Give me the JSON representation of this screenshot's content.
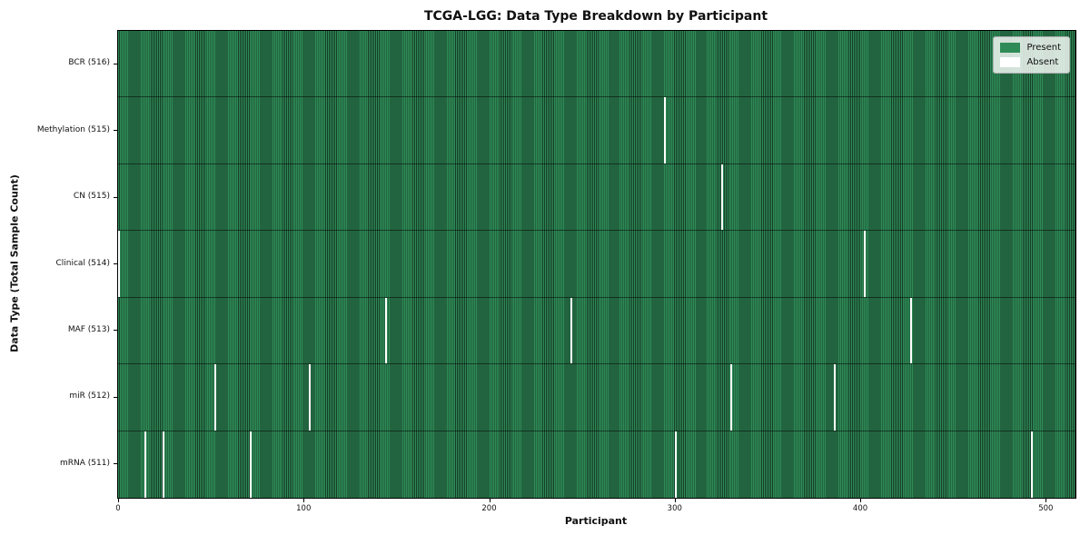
{
  "colors": {
    "present": "#2E8B57",
    "absent": "#FFFFFF",
    "bar_edge": "#173D27",
    "row_separator": "rgba(0,0,0,0.5)"
  },
  "chart_data": {
    "type": "heatmap",
    "title": "TCGA-LGG: Data Type Breakdown by Participant",
    "xlabel": "Participant",
    "ylabel": "Data Type (Total Sample Count)",
    "n_participants": 516,
    "x_ticks": [
      0,
      100,
      200,
      300,
      400,
      500
    ],
    "xlim": [
      0,
      516
    ],
    "grid": false,
    "legend_position": "upper right",
    "legend": [
      {
        "label": "Present",
        "color": "#2E8B57"
      },
      {
        "label": "Absent",
        "color": "#FFFFFF"
      }
    ],
    "rows": [
      {
        "label": "BCR (516)",
        "data_type": "BCR",
        "present_count": 516,
        "absent_count": 0,
        "absent_participants": []
      },
      {
        "label": "Methylation (515)",
        "data_type": "Methylation",
        "present_count": 515,
        "absent_count": 1,
        "absent_participants": [
          294
        ]
      },
      {
        "label": "CN (515)",
        "data_type": "CN",
        "present_count": 515,
        "absent_count": 1,
        "absent_participants": [
          325
        ]
      },
      {
        "label": "Clinical (514)",
        "data_type": "Clinical",
        "present_count": 514,
        "absent_count": 2,
        "absent_participants": [
          0,
          402
        ]
      },
      {
        "label": "MAF (513)",
        "data_type": "MAF",
        "present_count": 513,
        "absent_count": 3,
        "absent_participants": [
          144,
          244,
          427
        ]
      },
      {
        "label": "miR (512)",
        "data_type": "miR",
        "present_count": 512,
        "absent_count": 4,
        "absent_participants": [
          52,
          103,
          330,
          386
        ]
      },
      {
        "label": "mRNA (511)",
        "data_type": "mRNA",
        "present_count": 511,
        "absent_count": 5,
        "absent_participants": [
          14,
          24,
          71,
          300,
          492
        ]
      }
    ]
  }
}
